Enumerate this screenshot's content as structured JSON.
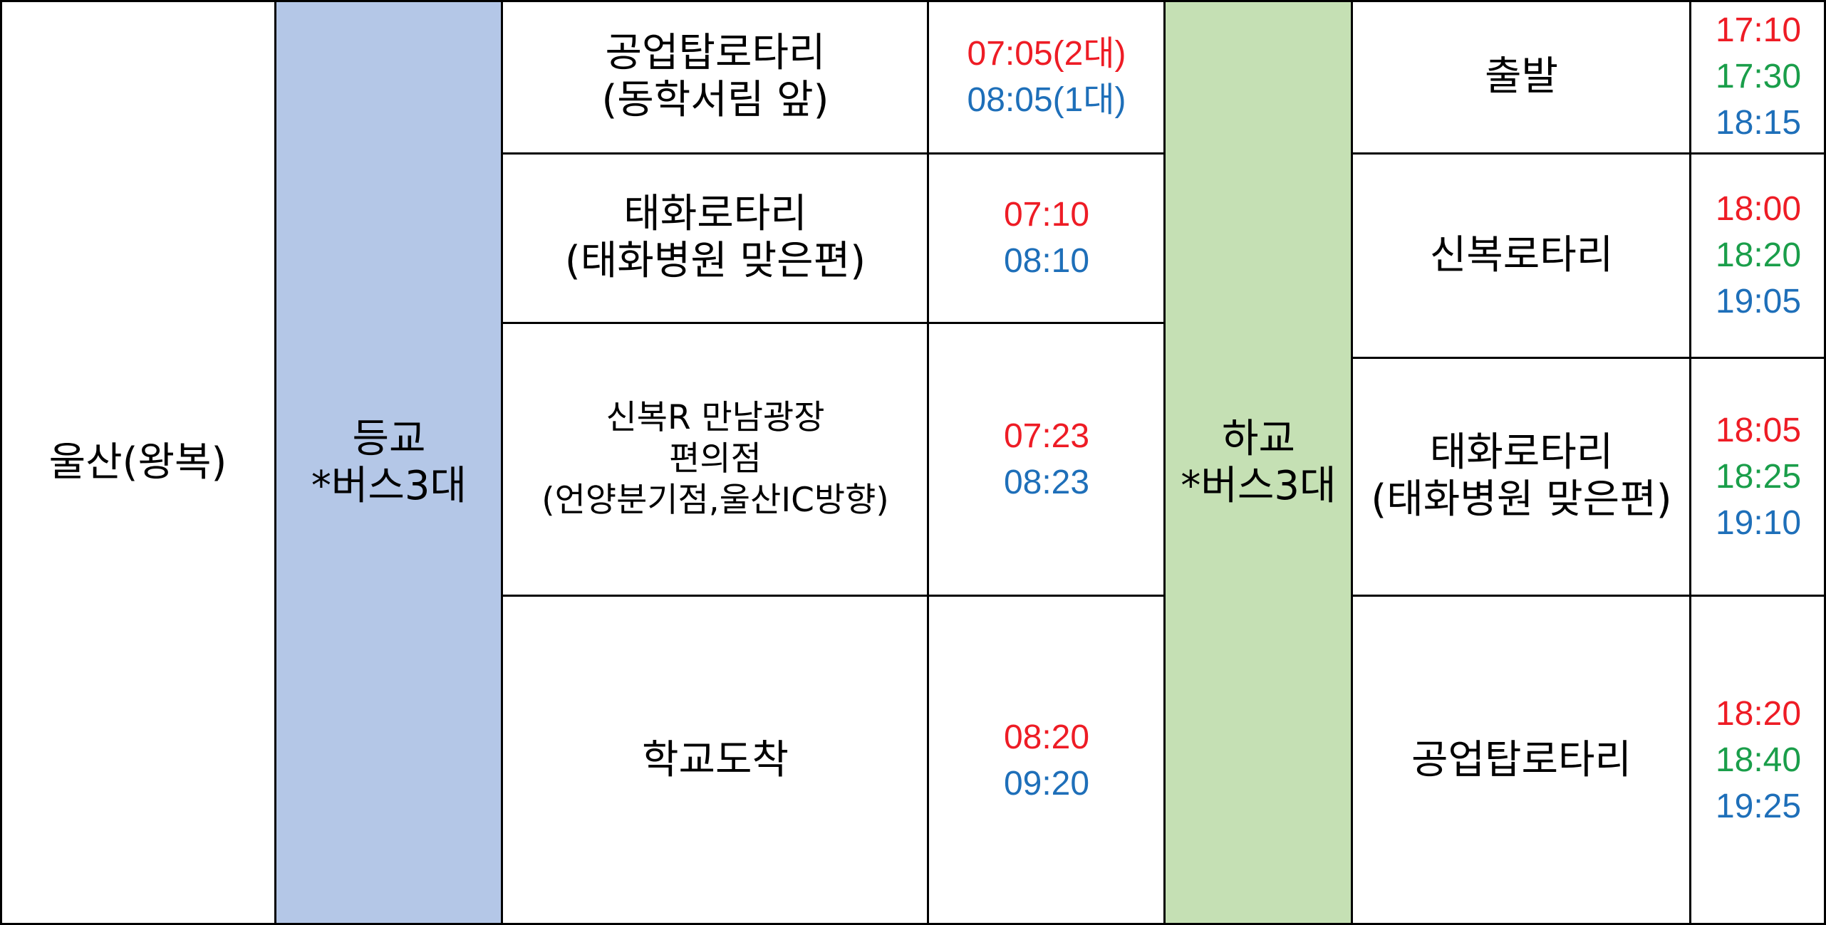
{
  "colors": {
    "red": "#ee1c25",
    "green": "#1a9e4a",
    "blue": "#1e6fb9",
    "morning_band": "#b4c7e7",
    "afternoon_band": "#c5e0b4"
  },
  "route": {
    "name": "울산(왕복)"
  },
  "morning": {
    "label": "등교",
    "buses": "*버스3대",
    "stops": [
      {
        "lines": [
          "공업탑로타리",
          "(동학서림 앞)"
        ],
        "times": [
          "07:05(2대)",
          "08:05(1대)"
        ]
      },
      {
        "lines": [
          "태화로타리",
          "(태화병원 맞은편)"
        ],
        "times": [
          "07:10",
          "08:10"
        ]
      },
      {
        "lines": [
          "신복R 만남광장",
          "편의점",
          "(언양분기점,울산IC방향)"
        ],
        "times": [
          "07:23",
          "08:23"
        ]
      },
      {
        "lines": [
          "학교도착"
        ],
        "times": [
          "08:20",
          "09:20"
        ]
      }
    ]
  },
  "afternoon": {
    "label": "하교",
    "buses": "*버스3대",
    "stops": [
      {
        "lines": [
          "출발"
        ],
        "times": [
          "17:10",
          "17:30",
          "18:15"
        ]
      },
      {
        "lines": [
          "신복로타리"
        ],
        "times": [
          "18:00",
          "18:20",
          "19:05"
        ]
      },
      {
        "lines": [
          "태화로타리",
          "(태화병원 맞은편)"
        ],
        "times": [
          "18:05",
          "18:25",
          "19:10"
        ]
      },
      {
        "lines": [
          "공업탑로타리"
        ],
        "times": [
          "18:20",
          "18:40",
          "19:25"
        ]
      }
    ]
  }
}
